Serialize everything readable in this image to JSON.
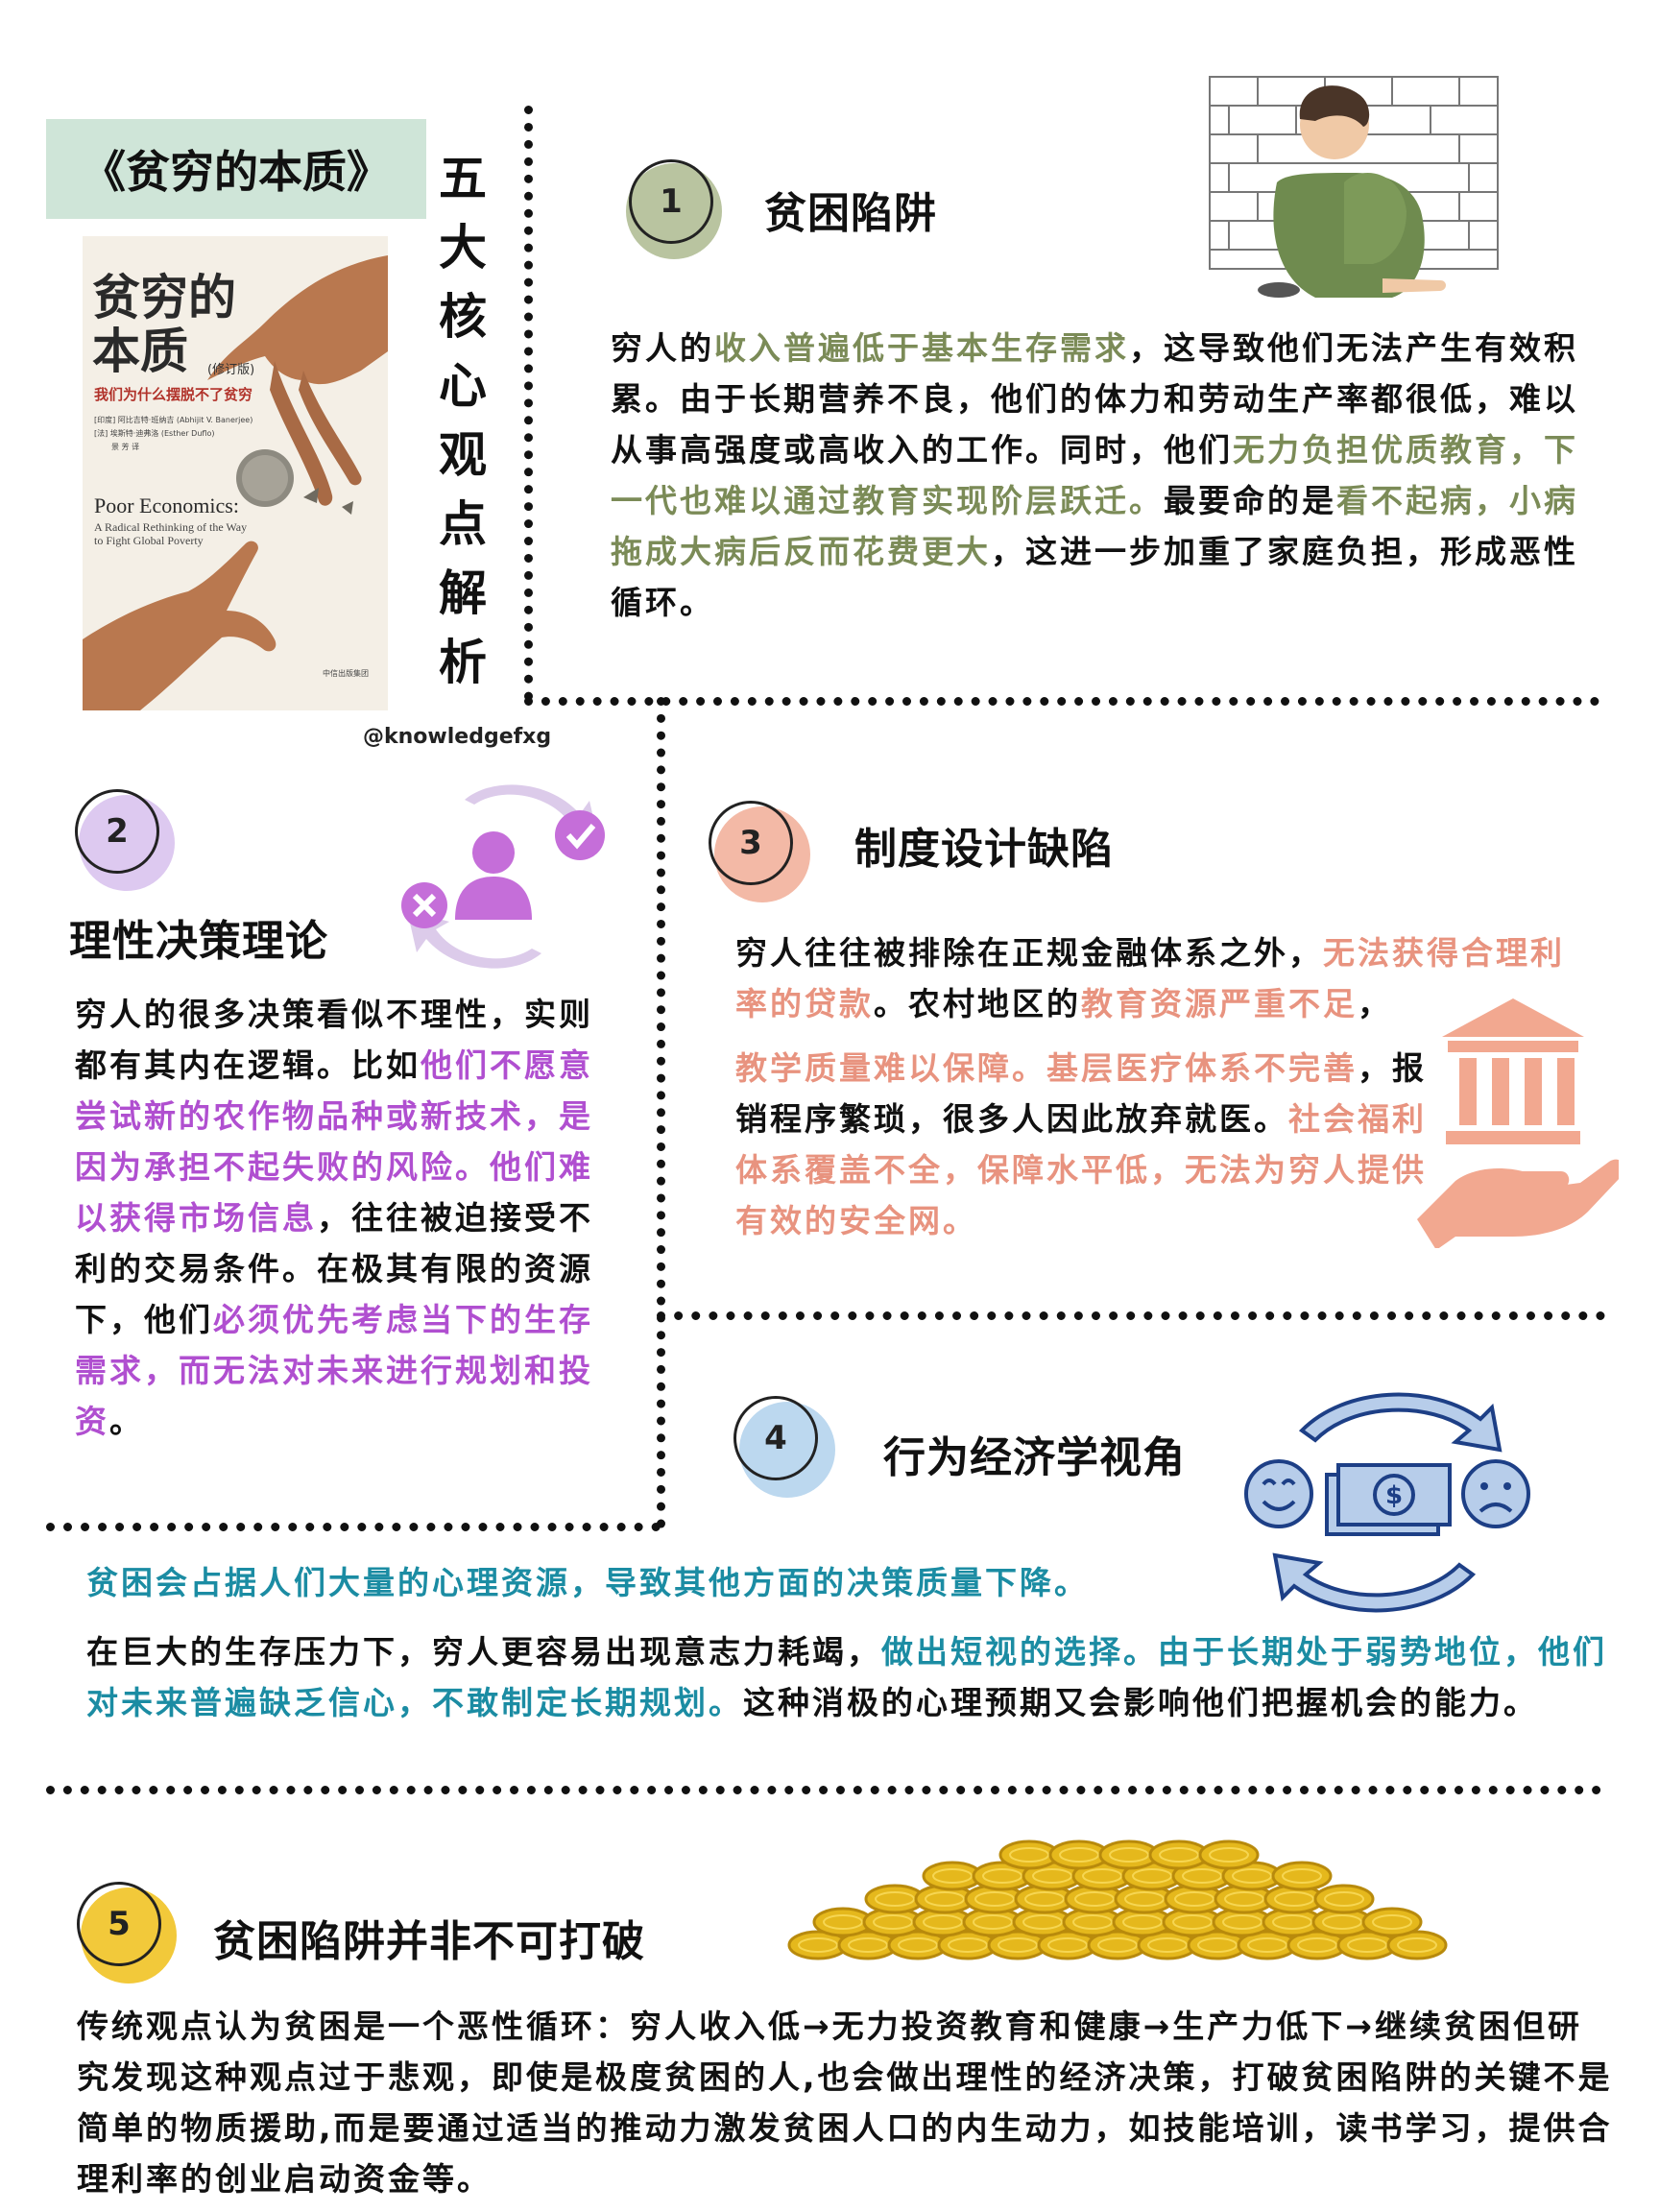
{
  "title_banner": "《贫穷的本质》",
  "vertical_title": [
    "五",
    "大",
    "核",
    "心",
    "观",
    "点",
    "解",
    "析"
  ],
  "handle": "@knowledgefxg",
  "book_cover": {
    "title_line1": "贫穷的",
    "title_line2": "本质",
    "edition": "(修订版)",
    "subtitle": "我们为什么摆脱不了贫穷",
    "author_line1": "[印度] 阿比吉特·班纳吉 (Abhijit V. Banerjee)",
    "author_line2": "[法] 埃斯特·迪弗洛 (Esther Duflo)",
    "translator": "景 芳 译",
    "en_title": "Poor Economics:",
    "en_subtitle": "A Radical Rethinking of the Way to Fight Global Poverty",
    "publisher": "中信出版集团"
  },
  "sections": {
    "s1": {
      "num": "1",
      "heading": "贫困陷阱",
      "color": "#b9c4a0",
      "text": [
        {
          "t": "穷人的",
          "c": ""
        },
        {
          "t": "收入普遍低于基本生存需求",
          "c": "green"
        },
        {
          "t": "，这导致他们无法产生有效积累。由于长期营养不良，他们的体力和劳动生产率都很低，难以从事高强度或高收入的工作。同时，他们",
          "c": ""
        },
        {
          "t": "无力负担优质教育，下一代也难以通过教育实现阶层跃迁。",
          "c": "green"
        },
        {
          "t": "最要命的是",
          "c": ""
        },
        {
          "t": "看不起病，小病拖成大病后反而花费更大",
          "c": "green"
        },
        {
          "t": "，这进一步加重了家庭负担，形成恶性循环。",
          "c": ""
        }
      ]
    },
    "s2": {
      "num": "2",
      "heading": "理性决策理论",
      "color": "#ddc9f0",
      "text": [
        {
          "t": "穷人的很多决策看似不理性，实则都有其内在逻辑。比如",
          "c": ""
        },
        {
          "t": "他们不愿意尝试新的农作物品种或新技术，是因为承担不起失败的风险。他们难以获得市场信息",
          "c": "purple"
        },
        {
          "t": "，往往被迫接受不利的交易条件。在极其有限的资源下，他们",
          "c": ""
        },
        {
          "t": "必须优先考虑当下的生存需求，而无法对未来进行规划和投资",
          "c": "purple"
        },
        {
          "t": "。",
          "c": ""
        }
      ]
    },
    "s3": {
      "num": "3",
      "heading": "制度设计缺陷",
      "color": "#f3b9a6",
      "text_a": [
        {
          "t": "穷人往往被排除在正规金融体系之外，",
          "c": ""
        },
        {
          "t": "无法获得合理利率的贷款",
          "c": "salmon"
        },
        {
          "t": "。农村地区的",
          "c": ""
        },
        {
          "t": "教育资源严重不足",
          "c": "salmon"
        },
        {
          "t": "，",
          "c": ""
        }
      ],
      "text_b": [
        {
          "t": "教学质量难以保障。基层医疗体系不完善",
          "c": "salmon"
        },
        {
          "t": "，报销程序繁琐，很多人因此放弃就医。",
          "c": ""
        },
        {
          "t": "社会福利体系覆盖不全，保障水平低，无法为穷人提供有效的安全网。",
          "c": "salmon"
        }
      ]
    },
    "s4": {
      "num": "4",
      "heading": "行为经济学视角",
      "color": "#bcd8ef",
      "lead": "贫困会占据人们大量的心理资源，导致其他方面的决策质量下降。",
      "text": [
        {
          "t": "在巨大的生存压力下，穷人更容易出现意志力耗竭，",
          "c": ""
        },
        {
          "t": "做出短视的选择。由于长期处于弱势地位，他们对未来普遍缺乏信心，不敢制定长期规划。",
          "c": "teal"
        },
        {
          "t": "这种消极的心理预期又会影响他们把握机会的能力。",
          "c": ""
        }
      ]
    },
    "s5": {
      "num": "5",
      "heading": "贫困陷阱并非不可打破",
      "color": "#f2c93a",
      "text": "传统观点认为贫困是一个恶性循环：穷人收入低→无力投资教育和健康→生产力低下→继续贫困但研究发现这种观点过于悲观，即使是极度贫困的人,也会做出理性的经济决策，打破贫困陷阱的关键不是简单的物质援助,而是要通过适当的推动力激发贫困人口的内生动力，如技能培训，读书学习，提供合理利率的创业启动资金等。"
    }
  },
  "icons": {
    "s1": "poor-child-illustration",
    "s2": "decision-cycle-icon",
    "s3": "bank-in-hand-icon",
    "s4": "money-emotion-cycle-icon",
    "s5": "gold-coin-pile-icon"
  }
}
